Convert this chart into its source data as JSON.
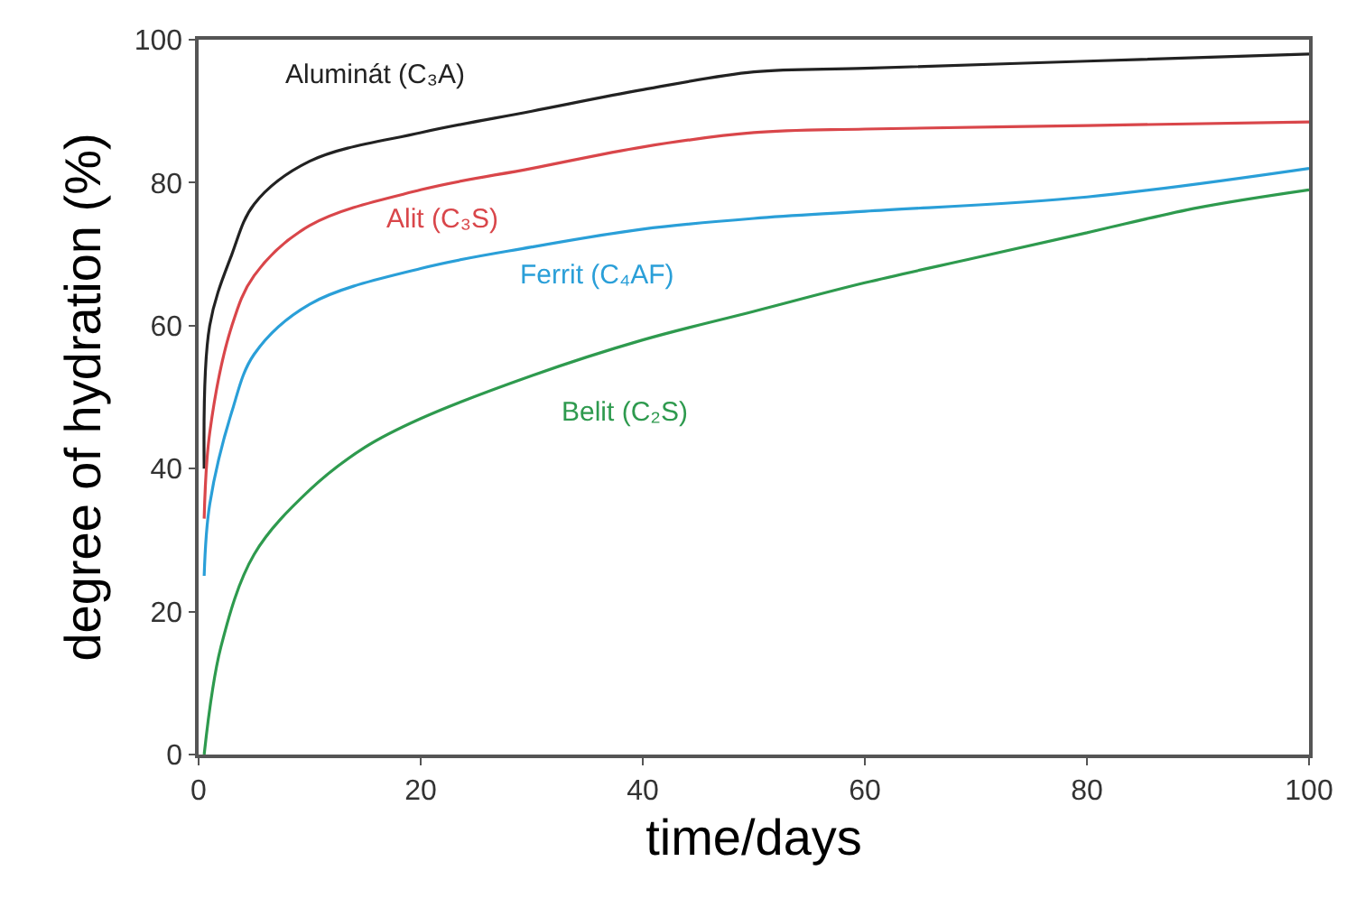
{
  "chart_data": {
    "type": "line",
    "xlabel": "time/days",
    "ylabel": "degree of hydration (%)",
    "xlim": [
      0,
      100
    ],
    "ylim": [
      0,
      100
    ],
    "xticks": [
      0,
      20,
      40,
      60,
      80,
      100
    ],
    "yticks": [
      0,
      20,
      40,
      60,
      80,
      100
    ],
    "legend": false,
    "marker": "none",
    "line_style": "solid",
    "series": [
      {
        "name": "Aluminát (C₃A)",
        "color": "#222222",
        "x": [
          0.5,
          1,
          3,
          5,
          10,
          20,
          30,
          40,
          50,
          60,
          80,
          100
        ],
        "values": [
          40,
          60,
          70,
          77,
          83,
          87,
          90,
          93,
          95.5,
          96,
          97,
          98
        ]
      },
      {
        "name": "Alit (C₃S)",
        "color": "#d9464a",
        "x": [
          0.5,
          1,
          3,
          5,
          10,
          20,
          30,
          40,
          50,
          60,
          80,
          100
        ],
        "values": [
          33,
          45,
          60,
          67,
          74,
          79,
          82,
          85,
          87,
          87.5,
          88,
          88.5
        ]
      },
      {
        "name": "Ferrit (C₄AF)",
        "color": "#2a9fd8",
        "x": [
          0.5,
          1,
          3,
          5,
          10,
          20,
          30,
          40,
          50,
          60,
          80,
          100
        ],
        "values": [
          25,
          35,
          48,
          56,
          63,
          68,
          71,
          73.5,
          75,
          76,
          78,
          82
        ]
      },
      {
        "name": "Belit (C₂S)",
        "color": "#2e9a4e",
        "x": [
          0.5,
          2,
          5,
          10,
          15,
          20,
          30,
          40,
          50,
          60,
          70,
          80,
          90,
          100
        ],
        "values": [
          0,
          15,
          28,
          37,
          43,
          47,
          53,
          58,
          62,
          66,
          69.5,
          73,
          76.5,
          79
        ]
      }
    ]
  }
}
